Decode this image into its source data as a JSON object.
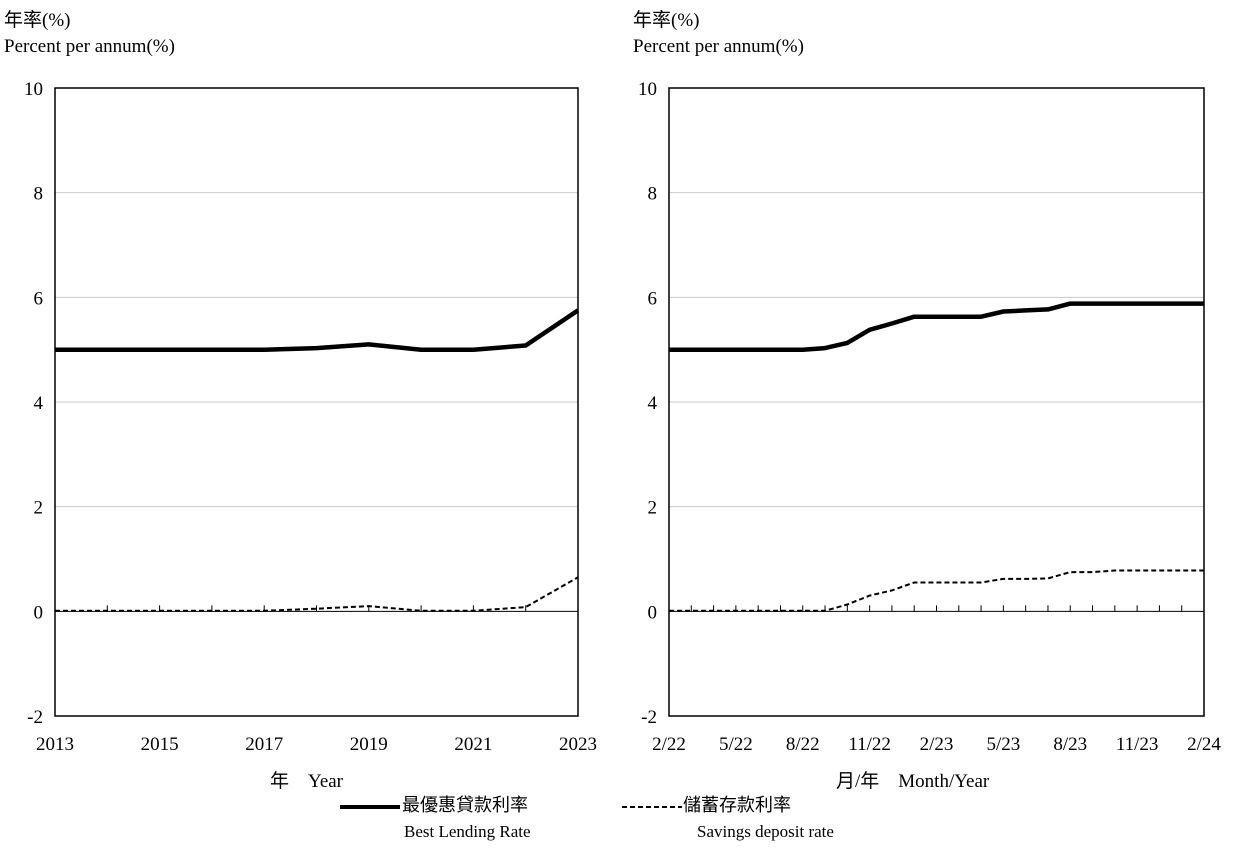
{
  "chart_data": [
    {
      "type": "line",
      "ylabel": [
        "年率(%)",
        "Percent per annum(%)"
      ],
      "xlabel": "年　Year",
      "ylim": [
        -2,
        10
      ],
      "yticks": [
        -2,
        0,
        2,
        4,
        6,
        8,
        10
      ],
      "grid": true,
      "x": [
        2013,
        2014,
        2015,
        2016,
        2017,
        2018,
        2019,
        2020,
        2021,
        2022,
        2023
      ],
      "xtick_labels": [
        "2013",
        "2015",
        "2017",
        "2019",
        "2021",
        "2023"
      ],
      "series": [
        {
          "name": "最優惠貸款利率 Best Lending Rate",
          "style": "solid-thick",
          "values": [
            5.0,
            5.0,
            5.0,
            5.0,
            5.0,
            5.03,
            5.1,
            5.0,
            5.0,
            5.08,
            5.75
          ]
        },
        {
          "name": "儲蓄存款利率 Savings deposit rate",
          "style": "dashed",
          "values": [
            0.01,
            0.01,
            0.01,
            0.01,
            0.01,
            0.05,
            0.1,
            0.01,
            0.01,
            0.08,
            0.65
          ]
        }
      ]
    },
    {
      "type": "line",
      "ylabel": [
        "年率(%)",
        "Percent per annum(%)"
      ],
      "xlabel": "月/年　Month/Year",
      "ylim": [
        -2,
        10
      ],
      "yticks": [
        -2,
        0,
        2,
        4,
        6,
        8,
        10
      ],
      "grid": true,
      "x": [
        "2/22",
        "3/22",
        "4/22",
        "5/22",
        "6/22",
        "7/22",
        "8/22",
        "9/22",
        "10/22",
        "11/22",
        "12/22",
        "1/23",
        "2/23",
        "3/23",
        "4/23",
        "5/23",
        "6/23",
        "7/23",
        "8/23",
        "9/23",
        "10/23",
        "11/23",
        "12/23",
        "1/24",
        "2/24"
      ],
      "xtick_labels": [
        "2/22",
        "5/22",
        "8/22",
        "11/22",
        "2/23",
        "5/23",
        "8/23",
        "11/23",
        "2/24"
      ],
      "series": [
        {
          "name": "最優惠貸款利率 Best Lending Rate",
          "style": "solid-thick",
          "values": [
            5.0,
            5.0,
            5.0,
            5.0,
            5.0,
            5.0,
            5.0,
            5.03,
            5.13,
            5.38,
            5.5,
            5.63,
            5.63,
            5.63,
            5.63,
            5.73,
            5.75,
            5.77,
            5.88,
            5.88,
            5.88,
            5.88,
            5.88,
            5.88,
            5.88
          ]
        },
        {
          "name": "儲蓄存款利率 Savings deposit rate",
          "style": "dashed",
          "values": [
            0.01,
            0.01,
            0.01,
            0.01,
            0.01,
            0.01,
            0.01,
            0.01,
            0.13,
            0.3,
            0.4,
            0.55,
            0.55,
            0.55,
            0.55,
            0.62,
            0.62,
            0.63,
            0.75,
            0.75,
            0.78,
            0.78,
            0.78,
            0.78,
            0.78
          ]
        }
      ]
    }
  ],
  "legend": {
    "items": [
      {
        "label_zh": "最優惠貸款利率",
        "label_en": "Best Lending Rate",
        "style": "solid-thick"
      },
      {
        "label_zh": "儲蓄存款利率",
        "label_en": "Savings deposit rate",
        "style": "dashed"
      }
    ],
    "placement": "bottom-center"
  }
}
